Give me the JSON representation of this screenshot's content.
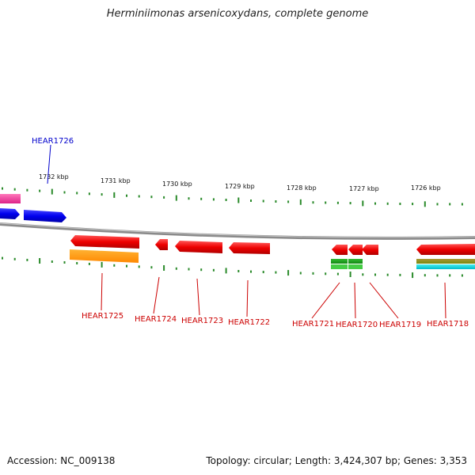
{
  "title": "Herminiimonas arsenicoxydans, complete genome",
  "footer": {
    "accession": "Accession: NC_009138",
    "summary": "Topology: circular; Length: 3,424,307 bp; Genes: 3,353"
  },
  "colors": {
    "backbone": "#8a8a8a",
    "tick": "#2a8a2a",
    "forward_label": "#0000cc",
    "reverse_label": "#cc0000"
  },
  "kbp_labels": [
    "1732 kbp",
    "1731 kbp",
    "1730 kbp",
    "1729 kbp",
    "1728 kbp",
    "1727 kbp",
    "1726 kbp"
  ],
  "genes": [
    {
      "name": "HEAR1726",
      "strand": "forward",
      "color": "#0000dd"
    },
    {
      "name": "HEAR1725",
      "strand": "reverse",
      "color": "#ee0000"
    },
    {
      "name": "HEAR1724",
      "strand": "reverse",
      "color": "#ee0000"
    },
    {
      "name": "HEAR1723",
      "strand": "reverse",
      "color": "#ee0000"
    },
    {
      "name": "HEAR1722",
      "strand": "reverse",
      "color": "#ee0000"
    },
    {
      "name": "HEAR1721",
      "strand": "reverse",
      "color": "#ee0000"
    },
    {
      "name": "HEAR1720",
      "strand": "reverse",
      "color": "#ee0000"
    },
    {
      "name": "HEAR1719",
      "strand": "reverse",
      "color": "#ee0000"
    },
    {
      "name": "HEAR1718",
      "strand": "reverse",
      "color": "#ee0000"
    }
  ]
}
